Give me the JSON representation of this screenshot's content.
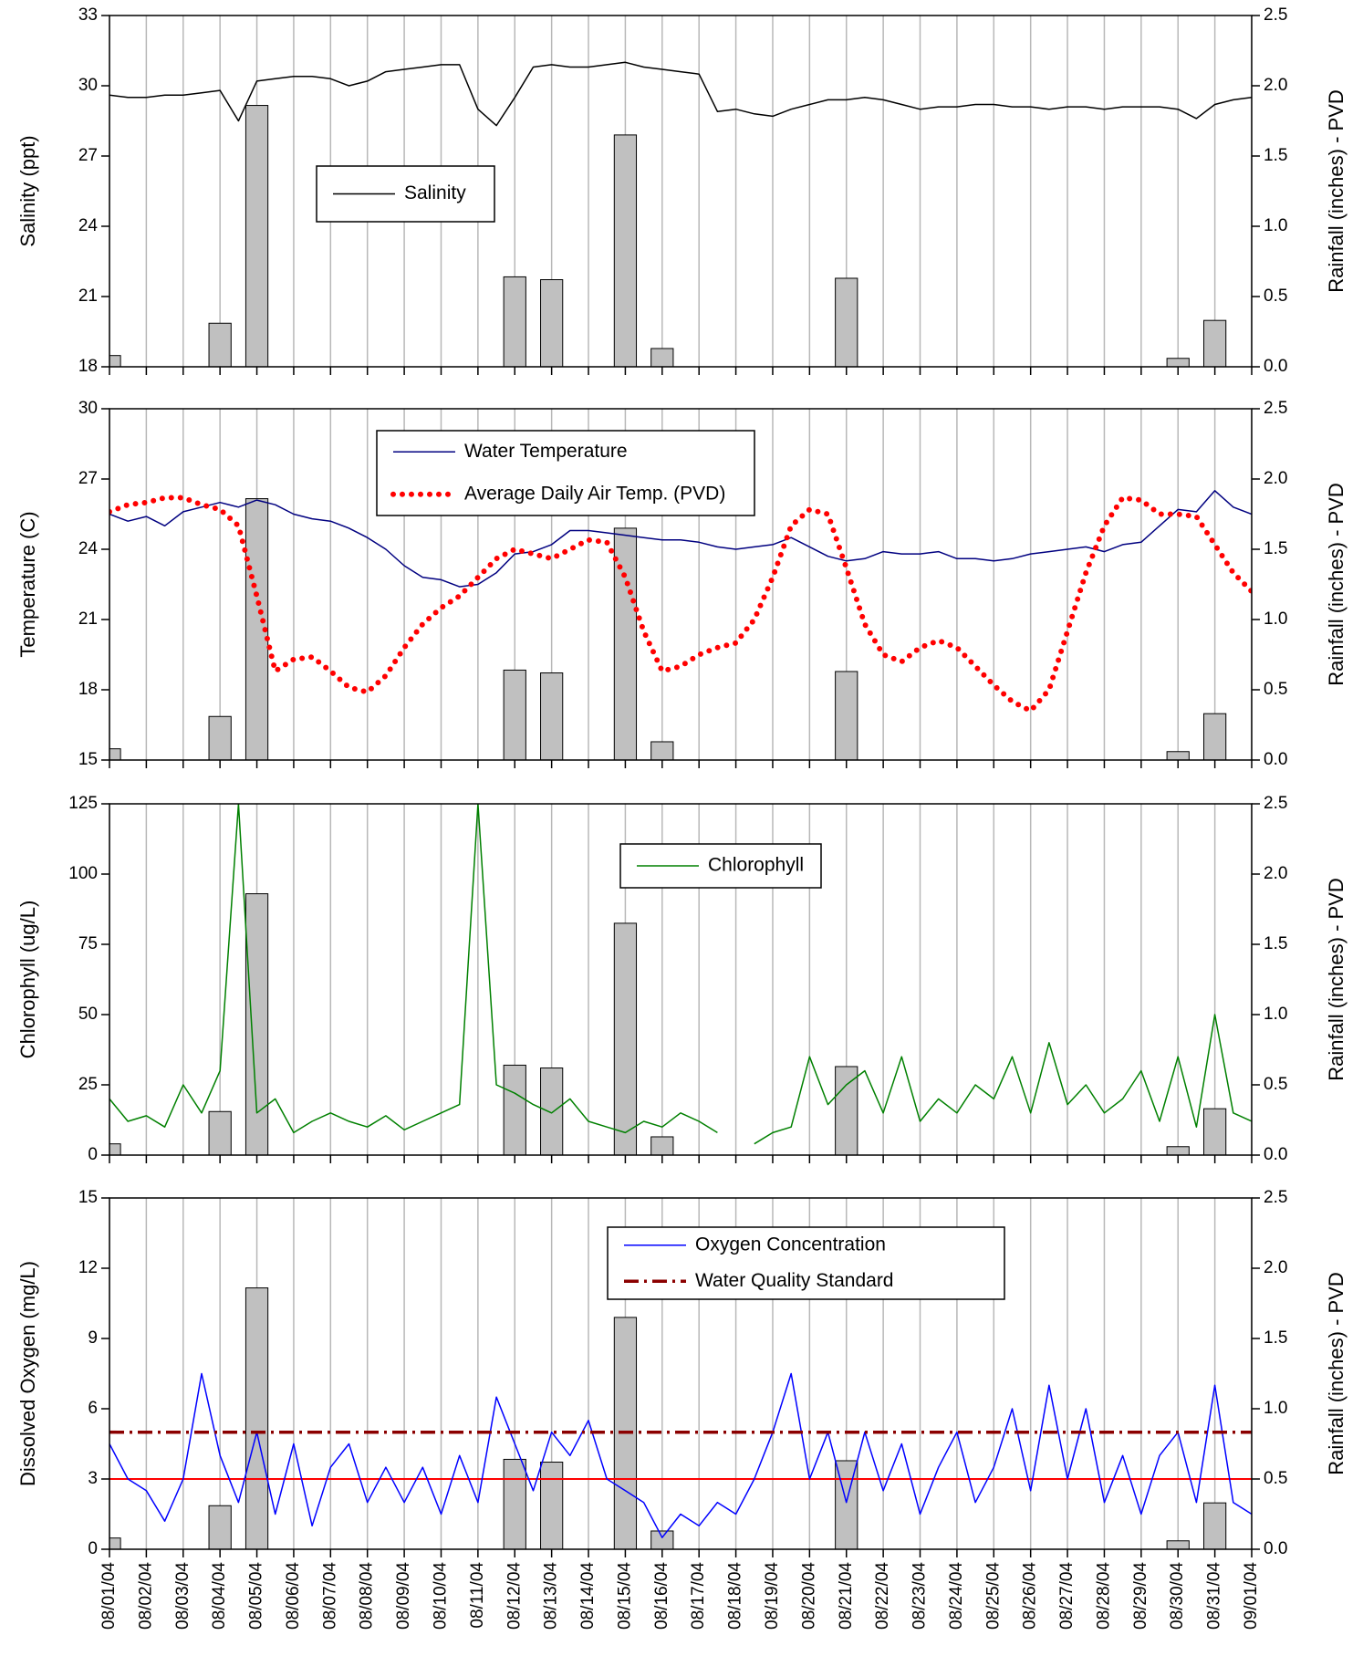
{
  "chart_data": [
    {
      "type": "line",
      "ylabel": "Salinity (ppt)",
      "y2label": "Rainfall (inches) - PVD",
      "grid": true,
      "xlim": [
        0,
        31
      ],
      "ylim": [
        18,
        33
      ],
      "yticks": [
        18,
        21,
        24,
        27,
        30,
        33
      ],
      "y2lim": [
        0,
        2.5
      ],
      "y2ticks": [
        {
          "value": 0,
          "label": "0.0"
        },
        0.5,
        {
          "value": 1,
          "label": "1.0"
        },
        1.5,
        {
          "value": 2,
          "label": "2.0"
        },
        2.5
      ],
      "x": [
        0,
        0.5,
        1,
        1.5,
        2,
        2.5,
        3,
        3.5,
        4,
        4.5,
        5,
        5.5,
        6,
        6.5,
        7,
        7.5,
        8,
        8.5,
        9,
        9.5,
        10,
        10.5,
        11,
        11.5,
        12,
        12.5,
        13,
        13.5,
        14,
        14.5,
        15,
        15.5,
        16,
        16.5,
        17,
        17.5,
        18,
        18.5,
        19,
        19.5,
        20,
        20.5,
        21,
        21.5,
        22,
        22.5,
        23,
        23.5,
        24,
        24.5,
        25,
        25.5,
        26,
        26.5,
        27,
        27.5,
        28,
        28.5,
        29,
        29.5,
        30,
        30.5,
        31
      ],
      "series": [
        {
          "type": "bar",
          "axis": "y2",
          "color": "#c0c0c0",
          "x": [
            0,
            3,
            4,
            11,
            12,
            14,
            15,
            20,
            29,
            30
          ],
          "values": [
            0.08,
            0.31,
            1.86,
            0.64,
            0.62,
            1.65,
            0.13,
            0.63,
            0.06,
            0.33
          ]
        },
        {
          "type": "line",
          "name": "Salinity",
          "color": "#000000",
          "style": "solid",
          "values": [
            29.6,
            29.5,
            29.5,
            29.6,
            29.6,
            29.7,
            29.8,
            28.5,
            30.2,
            30.3,
            30.4,
            30.4,
            30.3,
            30.0,
            30.2,
            30.6,
            30.7,
            30.8,
            30.9,
            30.9,
            29.0,
            28.3,
            29.5,
            30.8,
            30.9,
            30.8,
            30.8,
            30.9,
            31.0,
            30.8,
            30.7,
            30.6,
            30.5,
            28.9,
            29.0,
            28.8,
            28.7,
            29.0,
            29.2,
            29.4,
            29.4,
            29.5,
            29.4,
            29.2,
            29.0,
            29.1,
            29.1,
            29.2,
            29.2,
            29.1,
            29.1,
            29.0,
            29.1,
            29.1,
            29.0,
            29.1,
            29.1,
            29.1,
            29.0,
            28.6,
            29.2,
            29.4,
            29.5
          ]
        }
      ]
    },
    {
      "type": "line",
      "ylabel": "Temperature (C)",
      "y2label": "Rainfall (inches) - PVD",
      "grid": true,
      "xlim": [
        0,
        31
      ],
      "ylim": [
        15,
        30
      ],
      "yticks": [
        15,
        18,
        21,
        24,
        27,
        30
      ],
      "y2lim": [
        0,
        2.5
      ],
      "y2ticks": [
        {
          "value": 0,
          "label": "0.0"
        },
        0.5,
        {
          "value": 1,
          "label": "1.0"
        },
        1.5,
        {
          "value": 2,
          "label": "2.0"
        },
        2.5
      ],
      "x": [
        0,
        0.5,
        1,
        1.5,
        2,
        2.5,
        3,
        3.5,
        4,
        4.5,
        5,
        5.5,
        6,
        6.5,
        7,
        7.5,
        8,
        8.5,
        9,
        9.5,
        10,
        10.5,
        11,
        11.5,
        12,
        12.5,
        13,
        13.5,
        14,
        14.5,
        15,
        15.5,
        16,
        16.5,
        17,
        17.5,
        18,
        18.5,
        19,
        19.5,
        20,
        20.5,
        21,
        21.5,
        22,
        22.5,
        23,
        23.5,
        24,
        24.5,
        25,
        25.5,
        26,
        26.5,
        27,
        27.5,
        28,
        28.5,
        29,
        29.5,
        30,
        30.5,
        31
      ],
      "series": [
        {
          "type": "bar",
          "axis": "y2",
          "color": "#c0c0c0",
          "x": [
            0,
            3,
            4,
            11,
            12,
            14,
            15,
            20,
            29,
            30
          ],
          "values": [
            0.08,
            0.31,
            1.86,
            0.64,
            0.62,
            1.65,
            0.13,
            0.63,
            0.06,
            0.33
          ]
        },
        {
          "type": "line",
          "name": "Water Temperature",
          "color": "#000080",
          "style": "solid",
          "values": [
            25.5,
            25.2,
            25.4,
            25.0,
            25.6,
            25.8,
            26.0,
            25.8,
            26.1,
            25.9,
            25.5,
            25.3,
            25.2,
            24.9,
            24.5,
            24.0,
            23.3,
            22.8,
            22.7,
            22.4,
            22.5,
            23.0,
            23.8,
            23.9,
            24.2,
            24.8,
            24.8,
            24.7,
            24.6,
            24.5,
            24.4,
            24.4,
            24.3,
            24.1,
            24.0,
            24.1,
            24.2,
            24.5,
            24.1,
            23.7,
            23.5,
            23.6,
            23.9,
            23.8,
            23.8,
            23.9,
            23.6,
            23.6,
            23.5,
            23.6,
            23.8,
            23.9,
            24.0,
            24.1,
            23.9,
            24.2,
            24.3,
            25.0,
            25.7,
            25.6,
            26.5,
            25.8,
            25.5
          ]
        },
        {
          "type": "line",
          "name": "Average Daily Air Temp. (PVD)",
          "color": "#ff0000",
          "style": "dotted",
          "values": [
            25.6,
            25.9,
            26.0,
            26.2,
            26.2,
            25.9,
            25.7,
            25.0,
            22.0,
            18.8,
            19.3,
            19.4,
            18.8,
            18.1,
            17.9,
            18.6,
            19.8,
            20.8,
            21.5,
            22.0,
            22.8,
            23.6,
            24.0,
            23.8,
            23.6,
            24.0,
            24.4,
            24.3,
            22.8,
            20.5,
            18.8,
            19.0,
            19.5,
            19.8,
            20.0,
            21.0,
            22.8,
            25.0,
            25.7,
            25.5,
            23.2,
            20.8,
            19.5,
            19.2,
            19.8,
            20.1,
            19.8,
            19.0,
            18.2,
            17.5,
            17.1,
            18.0,
            20.5,
            23.0,
            25.0,
            26.2,
            26.1,
            25.5,
            25.5,
            25.4,
            24.2,
            23.0,
            22.2
          ]
        }
      ]
    },
    {
      "type": "line",
      "ylabel": "Chlorophyll (ug/L)",
      "y2label": "Rainfall (inches) - PVD",
      "grid": true,
      "xlim": [
        0,
        31
      ],
      "ylim": [
        0,
        125
      ],
      "yticks": [
        0,
        25,
        50,
        75,
        100,
        125
      ],
      "y2lim": [
        0,
        2.5
      ],
      "y2ticks": [
        {
          "value": 0,
          "label": "0.0"
        },
        0.5,
        {
          "value": 1,
          "label": "1.0"
        },
        1.5,
        {
          "value": 2,
          "label": "2.0"
        },
        2.5
      ],
      "x": [
        0,
        0.5,
        1,
        1.5,
        2,
        2.5,
        3,
        3.5,
        4,
        4.5,
        5,
        5.5,
        6,
        6.5,
        7,
        7.5,
        8,
        8.5,
        9,
        9.5,
        10,
        10.5,
        11,
        11.5,
        12,
        12.5,
        13,
        13.5,
        14,
        14.5,
        15,
        15.5,
        16,
        16.5,
        17,
        17.5,
        18,
        18.5,
        19,
        19.5,
        20,
        20.5,
        21,
        21.5,
        22,
        22.5,
        23,
        23.5,
        24,
        24.5,
        25,
        25.5,
        26,
        26.5,
        27,
        27.5,
        28,
        28.5,
        29,
        29.5,
        30,
        30.5,
        31
      ],
      "series": [
        {
          "type": "bar",
          "axis": "y2",
          "color": "#c0c0c0",
          "x": [
            0,
            3,
            4,
            11,
            12,
            14,
            15,
            20,
            29,
            30
          ],
          "values": [
            0.08,
            0.31,
            1.86,
            0.64,
            0.62,
            1.65,
            0.13,
            0.63,
            0.06,
            0.33
          ]
        },
        {
          "type": "line",
          "name": "Chlorophyll",
          "color": "#008000",
          "style": "solid",
          "values": [
            20,
            12,
            14,
            10,
            25,
            15,
            30,
            125,
            15,
            20,
            8,
            12,
            15,
            12,
            10,
            14,
            9,
            12,
            15,
            18,
            125,
            25,
            22,
            18,
            15,
            20,
            12,
            10,
            8,
            12,
            10,
            15,
            12,
            8,
            null,
            4,
            8,
            10,
            35,
            18,
            25,
            30,
            15,
            35,
            12,
            20,
            15,
            25,
            20,
            35,
            15,
            40,
            18,
            25,
            15,
            20,
            30,
            12,
            35,
            10,
            50,
            15,
            12
          ]
        }
      ]
    },
    {
      "type": "line",
      "ylabel": "Dissolved Oxygen (mg/L)",
      "y2label": "Rainfall (inches) - PVD",
      "grid": true,
      "xlim": [
        0,
        31
      ],
      "ylim": [
        0,
        15
      ],
      "yticks": [
        0,
        3,
        6,
        9,
        12,
        15
      ],
      "y2lim": [
        0,
        2.5
      ],
      "y2ticks": [
        {
          "value": 0,
          "label": "0.0"
        },
        0.5,
        {
          "value": 1,
          "label": "1.0"
        },
        1.5,
        {
          "value": 2,
          "label": "2.0"
        },
        2.5
      ],
      "xticks": [
        {
          "value": 0,
          "label": "08/01/04"
        },
        {
          "value": 1,
          "label": "08/02/04"
        },
        {
          "value": 2,
          "label": "08/03/04"
        },
        {
          "value": 3,
          "label": "08/04/04"
        },
        {
          "value": 4,
          "label": "08/05/04"
        },
        {
          "value": 5,
          "label": "08/06/04"
        },
        {
          "value": 6,
          "label": "08/07/04"
        },
        {
          "value": 7,
          "label": "08/08/04"
        },
        {
          "value": 8,
          "label": "08/09/04"
        },
        {
          "value": 9,
          "label": "08/10/04"
        },
        {
          "value": 10,
          "label": "08/11/04"
        },
        {
          "value": 11,
          "label": "08/12/04"
        },
        {
          "value": 12,
          "label": "08/13/04"
        },
        {
          "value": 13,
          "label": "08/14/04"
        },
        {
          "value": 14,
          "label": "08/15/04"
        },
        {
          "value": 15,
          "label": "08/16/04"
        },
        {
          "value": 16,
          "label": "08/17/04"
        },
        {
          "value": 17,
          "label": "08/18/04"
        },
        {
          "value": 18,
          "label": "08/19/04"
        },
        {
          "value": 19,
          "label": "08/20/04"
        },
        {
          "value": 20,
          "label": "08/21/04"
        },
        {
          "value": 21,
          "label": "08/22/04"
        },
        {
          "value": 22,
          "label": "08/23/04"
        },
        {
          "value": 23,
          "label": "08/24/04"
        },
        {
          "value": 24,
          "label": "08/25/04"
        },
        {
          "value": 25,
          "label": "08/26/04"
        },
        {
          "value": 26,
          "label": "08/27/04"
        },
        {
          "value": 27,
          "label": "08/28/04"
        },
        {
          "value": 28,
          "label": "08/29/04"
        },
        {
          "value": 29,
          "label": "08/30/04"
        },
        {
          "value": 30,
          "label": "08/31/04"
        },
        {
          "value": 31,
          "label": "09/01/04"
        }
      ],
      "x": [
        0,
        0.5,
        1,
        1.5,
        2,
        2.5,
        3,
        3.5,
        4,
        4.5,
        5,
        5.5,
        6,
        6.5,
        7,
        7.5,
        8,
        8.5,
        9,
        9.5,
        10,
        10.5,
        11,
        11.5,
        12,
        12.5,
        13,
        13.5,
        14,
        14.5,
        15,
        15.5,
        16,
        16.5,
        17,
        17.5,
        18,
        18.5,
        19,
        19.5,
        20,
        20.5,
        21,
        21.5,
        22,
        22.5,
        23,
        23.5,
        24,
        24.5,
        25,
        25.5,
        26,
        26.5,
        27,
        27.5,
        28,
        28.5,
        29,
        29.5,
        30,
        30.5,
        31
      ],
      "hlines": [
        {
          "value": 3,
          "color": "#ff0000"
        }
      ],
      "series": [
        {
          "type": "bar",
          "axis": "y2",
          "color": "#c0c0c0",
          "x": [
            0,
            3,
            4,
            11,
            12,
            14,
            15,
            20,
            29,
            30
          ],
          "values": [
            0.08,
            0.31,
            1.86,
            0.64,
            0.62,
            1.65,
            0.13,
            0.63,
            0.06,
            0.33
          ]
        },
        {
          "type": "line",
          "name": "Oxygen Concentration",
          "color": "#0000ff",
          "style": "solid",
          "values": [
            4.5,
            3,
            2.5,
            1.2,
            3,
            7.5,
            4,
            2,
            5,
            1.5,
            4.5,
            1,
            3.5,
            4.5,
            2,
            3.5,
            2,
            3.5,
            1.5,
            4,
            2,
            6.5,
            4.5,
            2.5,
            5,
            4,
            5.5,
            3,
            2.5,
            2,
            0.5,
            1.5,
            1,
            2,
            1.5,
            3,
            5,
            7.5,
            3,
            5,
            2,
            5,
            2.5,
            4.5,
            1.5,
            3.5,
            5,
            2,
            3.5,
            6,
            2.5,
            7,
            3,
            6,
            2,
            4,
            1.5,
            4,
            5,
            2,
            7,
            2,
            1.5
          ]
        },
        {
          "type": "line",
          "name": "Water Quality Standard",
          "color": "#8b0000",
          "style": "dash-dot",
          "x": [
            0,
            31
          ],
          "values": [
            5,
            5
          ]
        }
      ]
    }
  ]
}
